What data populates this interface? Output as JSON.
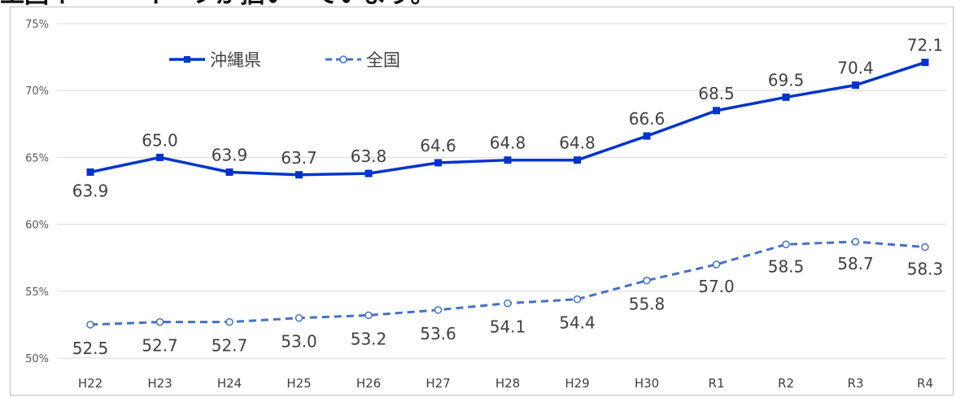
{
  "header_text": "工回イ゛~ーイ゛フが掴い゛ていまり。",
  "chart_data": {
    "type": "line",
    "categories": [
      "H22",
      "H23",
      "H24",
      "H25",
      "H26",
      "H27",
      "H28",
      "H29",
      "H30",
      "R1",
      "R2",
      "R3",
      "R4"
    ],
    "series": [
      {
        "name": "沖縄県",
        "values": [
          63.9,
          65.0,
          63.9,
          63.7,
          63.8,
          64.6,
          64.8,
          64.8,
          66.6,
          68.5,
          69.5,
          70.4,
          72.1
        ],
        "labels": [
          "63.9",
          "65.0",
          "63.9",
          "63.7",
          "63.8",
          "64.6",
          "64.8",
          "64.8",
          "66.6",
          "68.5",
          "69.5",
          "70.4",
          "72.1"
        ],
        "color": "#0033cc",
        "line_style": "solid",
        "marker": "square"
      },
      {
        "name": "全国",
        "values": [
          52.5,
          52.7,
          52.7,
          53.0,
          53.2,
          53.6,
          54.1,
          54.4,
          55.8,
          57.0,
          58.5,
          58.7,
          58.3
        ],
        "labels": [
          "52.5",
          "52.7",
          "52.7",
          "53.0",
          "53.2",
          "53.6",
          "54.1",
          "54.4",
          "55.8",
          "57.0",
          "58.5",
          "58.7",
          "58.3"
        ],
        "color": "#4472c4",
        "line_style": "dashed",
        "marker": "circle-open"
      }
    ],
    "y_ticks": [
      "50%",
      "55%",
      "60%",
      "65%",
      "70%",
      "75%"
    ],
    "ylim": [
      50,
      75
    ],
    "grid": true,
    "legend_position": "top-left"
  }
}
